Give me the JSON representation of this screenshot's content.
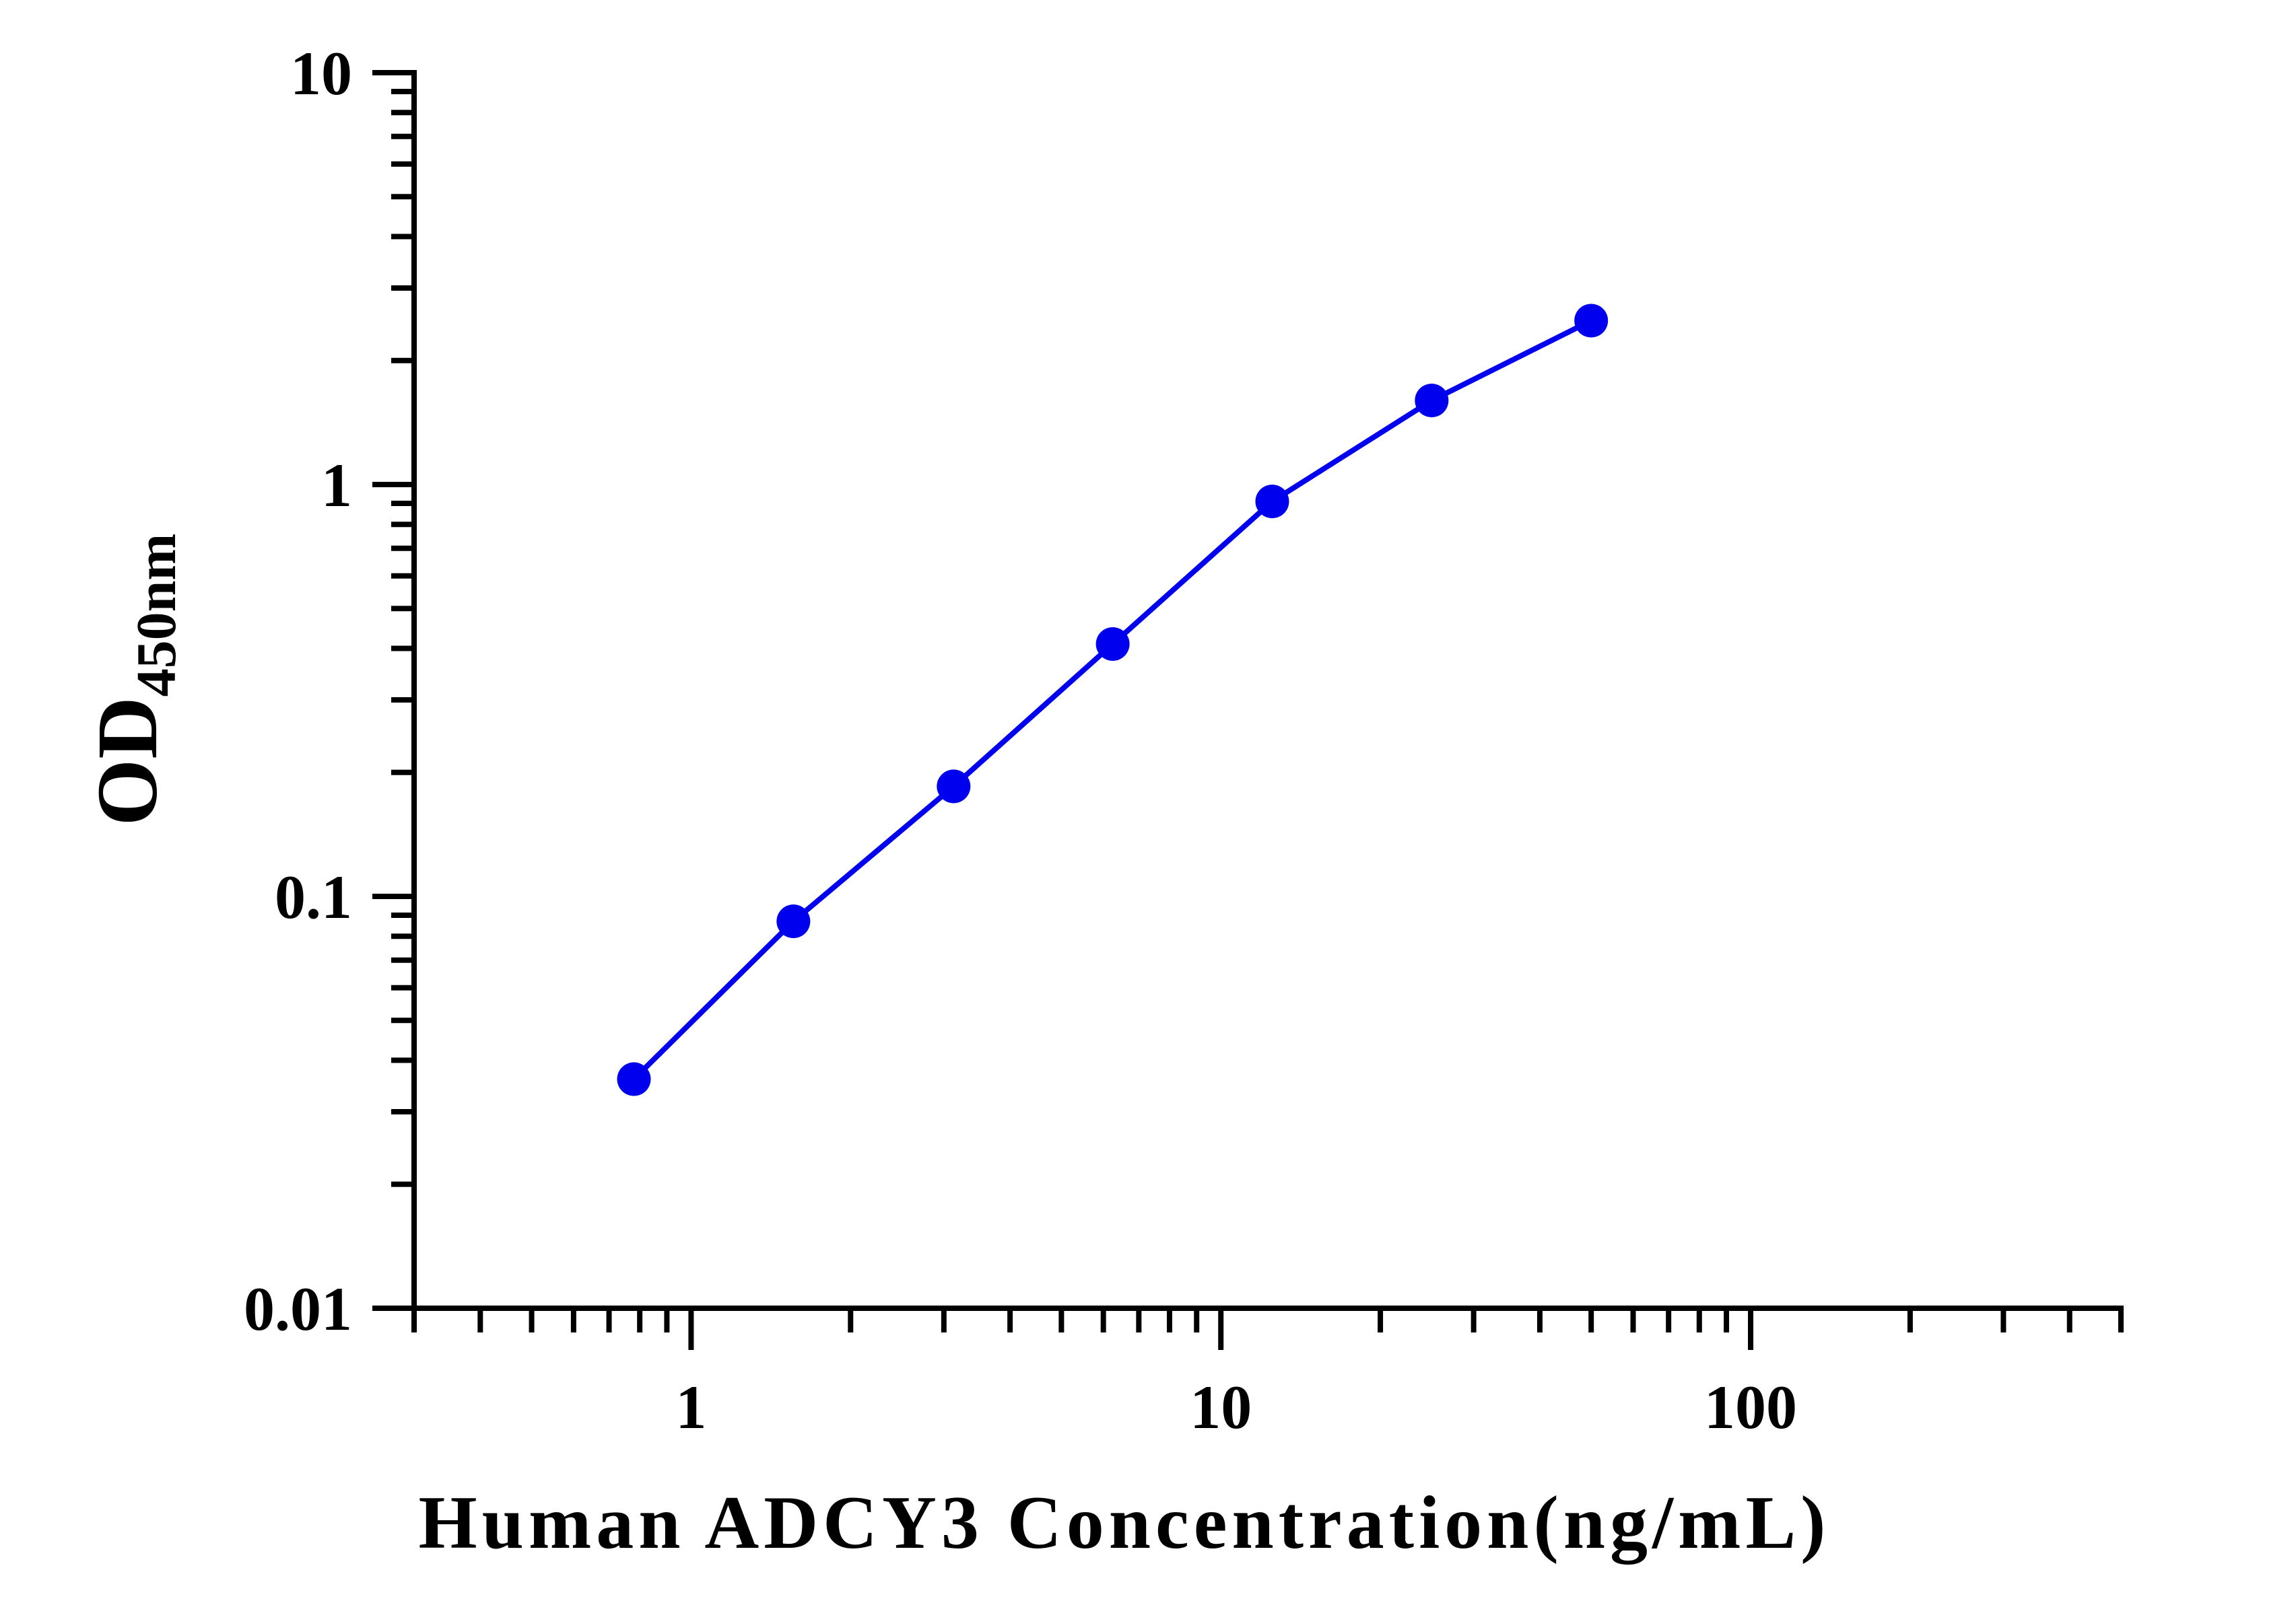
{
  "chart_data": {
    "type": "line",
    "title": "",
    "xlabel": "Human ADCY3 Concentration(ng/mL)",
    "ylabel_main": "OD",
    "ylabel_sub": "450nm",
    "x_scale": "log",
    "y_scale": "log",
    "xlim": [
      0.3,
      500
    ],
    "ylim": [
      0.01,
      10
    ],
    "x_ticks": [
      {
        "value": 1,
        "label": "1"
      },
      {
        "value": 10,
        "label": "10"
      },
      {
        "value": 100,
        "label": "100"
      }
    ],
    "y_ticks": [
      {
        "value": 0.01,
        "label": "0.01"
      },
      {
        "value": 0.1,
        "label": "0.1"
      },
      {
        "value": 1,
        "label": "1"
      },
      {
        "value": 10,
        "label": "10"
      }
    ],
    "grid": false,
    "legend": "none",
    "series": [
      {
        "color": "#0000ee",
        "marker": "circle",
        "x": [
          0.78,
          1.56,
          3.13,
          6.25,
          12.5,
          25,
          50
        ],
        "y": [
          0.036,
          0.087,
          0.185,
          0.41,
          0.91,
          1.6,
          2.5
        ]
      }
    ]
  }
}
